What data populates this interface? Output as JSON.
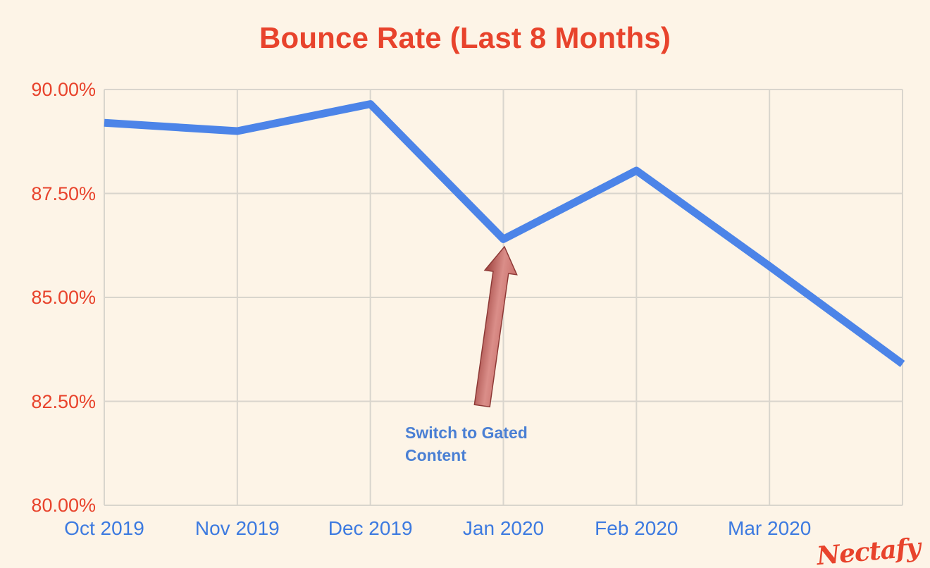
{
  "page": {
    "background": "#fdf4e7"
  },
  "title": {
    "text": "Bounce Rate (Last 8 Months)",
    "color": "#e8432c"
  },
  "annotation": {
    "text": "Switch to Gated Content",
    "color": "#4a7fd4"
  },
  "logo": {
    "text": "Nectafy",
    "color": "#e8432c"
  },
  "chart_data": {
    "type": "line",
    "title": "Bounce Rate (Last 8 Months)",
    "x_labels": [
      "Oct 2019",
      "Nov 2019",
      "Dec 2019",
      "Jan 2020",
      "Feb 2020",
      "Mar 2020",
      ""
    ],
    "series": [
      {
        "name": "Bounce Rate",
        "values": [
          89.2,
          89.0,
          89.65,
          86.4,
          88.05,
          85.75,
          83.4
        ]
      }
    ],
    "y_ticks": [
      {
        "value": 90,
        "label": "90.00%"
      },
      {
        "value": 87.5,
        "label": "87.50%"
      },
      {
        "value": 85,
        "label": "85.00%"
      },
      {
        "value": 82.5,
        "label": "82.50%"
      },
      {
        "value": 80,
        "label": "80.00%"
      }
    ],
    "ylim": [
      80,
      90
    ],
    "grid": true,
    "legend": "none",
    "line_color": "#4c84e8",
    "x_label_color": "#3d7ae0",
    "y_label_color": "#e8432c",
    "annotation": {
      "text": "Switch to Gated Content",
      "points_to_x": "Jan 2020",
      "points_to_y": 86.4,
      "arrow_direction": "up",
      "arrow_color_dark": "#9c3f3b",
      "arrow_color_light": "#da8e89"
    }
  }
}
